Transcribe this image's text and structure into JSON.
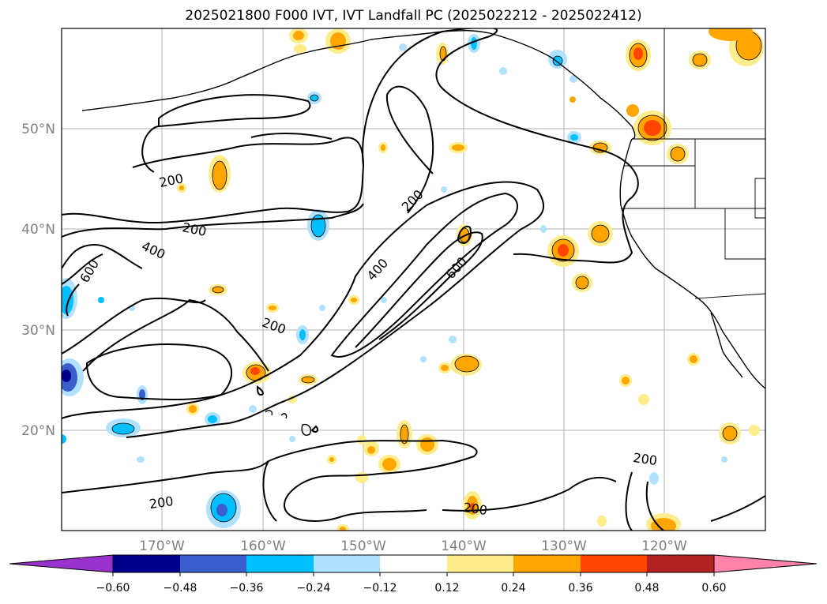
{
  "title": "2025021800 F000 IVT, IVT Landfall PC (2025022212 - 2025022412)",
  "map": {
    "lat_labels": [
      "50°N",
      "40°N",
      "30°N",
      "20°N"
    ],
    "lon_labels": [
      "170°W",
      "160°W",
      "150°W",
      "140°W",
      "130°W",
      "120°W"
    ],
    "contour_labels": [
      "200",
      "200",
      "200",
      "200",
      "200",
      "200",
      "400",
      "400",
      "600",
      "600"
    ],
    "colors": {
      "contour": "#000000",
      "grid": "#b0b0b0",
      "coast": "#000000"
    }
  },
  "colorbar": {
    "ticks": [
      "−0.60",
      "−0.48",
      "−0.36",
      "−0.24",
      "−0.12",
      "0.12",
      "0.24",
      "0.36",
      "0.48",
      "0.60"
    ],
    "colors": [
      "#9932cc",
      "#00008b",
      "#3a5fcd",
      "#00bfff",
      "#b0e2ff",
      "#ffffff",
      "#ffec8b",
      "#ffa500",
      "#ff4500",
      "#b22222",
      "#ff82ab"
    ]
  }
}
